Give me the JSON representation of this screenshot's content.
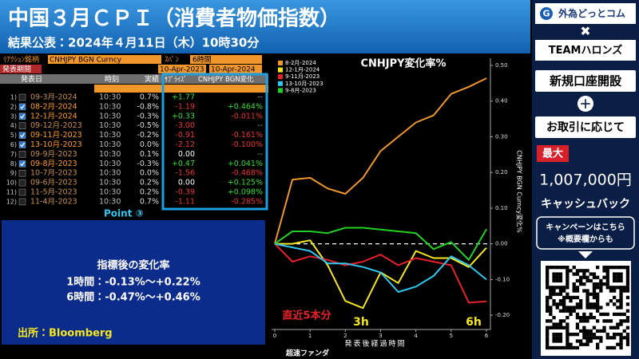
{
  "header": {
    "title": "中国３月ＣＰＩ（消費者物価指数）",
    "subtitle": "結果公表：2024年４月11日（木）10時30分"
  },
  "table": {
    "reaction_label": "ﾘｱｸｼｮﾝ銘柄",
    "ticker": "CNHJPY BGN Curncy",
    "span_label": "ｽﾊﾟﾝ",
    "span": "6時間",
    "period_label": "発表期間",
    "period_start": "10-Apr-2023",
    "period_end": "10-Apr-2024",
    "columns": [
      "発表日",
      "時刻",
      "実績",
      "ｻﾌﾟﾗｲｽﾞ",
      "CNHJPY BGN変化"
    ],
    "checked": [
      false,
      true,
      true,
      false,
      true,
      true,
      false,
      true,
      false,
      false,
      false,
      false
    ],
    "rows": [
      [
        "1)",
        "09-3月-2024",
        "10:30",
        "0.7%",
        "+1.77",
        "--"
      ],
      [
        "2)",
        "08-2月-2024",
        "10:30",
        "-0.8%",
        "-1.19",
        "+0.464%"
      ],
      [
        "3)",
        "12-1月-2024",
        "10:30",
        "-0.3%",
        "+0.33",
        "-0.011%"
      ],
      [
        "4)",
        "09-12月-2023",
        "10:30",
        "-0.5%",
        "-3.00",
        "--"
      ],
      [
        "5)",
        "09-11月-2023",
        "10:30",
        "-0.2%",
        "-0.91",
        "-0.161%"
      ],
      [
        "6)",
        "13-10月-2023",
        "10:30",
        "0.0%",
        "-2.12",
        "-0.100%"
      ],
      [
        "7)",
        "09-9月-2023",
        "10:30",
        "0.1%",
        "0.00",
        "--"
      ],
      [
        "8)",
        "09-8月-2023",
        "10:30",
        "-0.3%",
        "+0.47",
        "+0.041%"
      ],
      [
        "9)",
        "10-7月-2023",
        "10:30",
        "0.0%",
        "-1.56",
        "-0.468%"
      ],
      [
        "10)",
        "09-6月-2023",
        "10:30",
        "0.2%",
        "0.00",
        "+0.125%"
      ],
      [
        "11)",
        "11-5月-2023",
        "10:30",
        "0.2%",
        "-0.39",
        "+0.098%"
      ],
      [
        "12)",
        "11-4月-2023",
        "10:30",
        "0.7%",
        "-1.11",
        "-0.285%"
      ]
    ],
    "point": "Point ③"
  },
  "summary": {
    "heading": "指標後の変化率",
    "lines": [
      "1時間：-0.13%～+0.22%",
      "6時間：-0.47%～+0.46%"
    ],
    "source": "出所：Bloomberg"
  },
  "chart_data": {
    "type": "line",
    "title": "CNHJPY変化率%",
    "x_label": "発表後経過時間",
    "y_label": "CNHJPY BGN Curncy変化%",
    "annotations": [
      "直近5本分",
      "3h",
      "6h"
    ],
    "watermark": "超速ファンダ",
    "legend": "upper left",
    "x": [
      0,
      0.5,
      1,
      1.5,
      2,
      2.5,
      3,
      3.5,
      4,
      4.5,
      5,
      5.5,
      6
    ],
    "xlim": [
      0,
      6
    ],
    "xticks": [
      0,
      1,
      2,
      3,
      4,
      5,
      6
    ],
    "ylim": [
      -0.24,
      0.52
    ],
    "yticks": [
      {
        "value": -0.2,
        "label": "-0.20"
      },
      {
        "value": -0.1,
        "label": "-0.10"
      },
      {
        "value": 0,
        "label": "0.00"
      },
      {
        "value": 0.1,
        "label": "0.10"
      },
      {
        "value": 0.2,
        "label": "0.20"
      },
      {
        "value": 0.3,
        "label": "0.30"
      },
      {
        "value": 0.4,
        "label": "0.40"
      },
      {
        "value": 0.5,
        "label": "0.50"
      }
    ],
    "series": [
      {
        "name": "8-2月-2024",
        "color": "#f0962a",
        "values": [
          0,
          0.18,
          0.185,
          0.155,
          0.14,
          0.185,
          0.26,
          0.3,
          0.34,
          0.36,
          0.42,
          0.44,
          0.464
        ]
      },
      {
        "name": "12-1月-2024",
        "color": "#f5e61e",
        "values": [
          0,
          0.0,
          0.01,
          -0.06,
          -0.16,
          -0.18,
          -0.08,
          -0.11,
          -0.02,
          -0.04,
          -0.04,
          -0.065,
          -0.011
        ]
      },
      {
        "name": "9-11月-2023",
        "color": "#e8202a",
        "values": [
          0,
          -0.05,
          -0.035,
          -0.045,
          -0.06,
          -0.05,
          -0.03,
          -0.06,
          -0.04,
          -0.05,
          -0.06,
          -0.165,
          -0.161
        ]
      },
      {
        "name": "13-10月-2023",
        "color": "#2ec8f0",
        "values": [
          0,
          -0.01,
          -0.02,
          -0.055,
          -0.055,
          -0.065,
          -0.08,
          -0.135,
          -0.12,
          -0.09,
          -0.035,
          -0.06,
          -0.1
        ]
      },
      {
        "name": "9-8月-2023",
        "color": "#22d022",
        "values": [
          0,
          0.035,
          0.035,
          0.03,
          0.045,
          0.045,
          0.04,
          0.035,
          0.03,
          -0.015,
          0.005,
          -0.045,
          0.041
        ]
      }
    ]
  },
  "sidebar": {
    "brand": "外為どっとコム",
    "cross": "✖",
    "partner": "TEAMハロンズ",
    "open_account": "新規口座開設",
    "plus": "＋",
    "per_trade": "お取引に応じて",
    "max": "最大",
    "amount": "1,007,000円",
    "cashback": "キャッシュバック",
    "campaign": [
      "キャンペーンはこちら",
      "※概要欄からも"
    ]
  }
}
